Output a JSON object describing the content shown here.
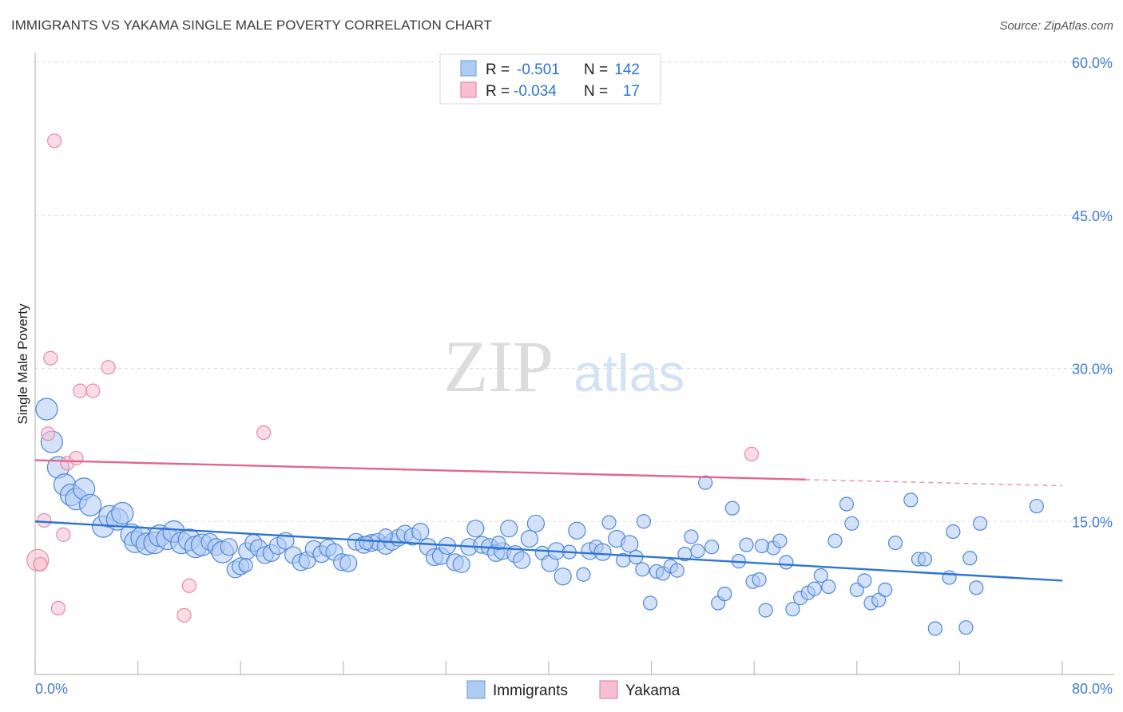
{
  "header": {
    "title": "IMMIGRANTS VS YAKAMA SINGLE MALE POVERTY CORRELATION CHART",
    "source": "Source: ZipAtlas.com"
  },
  "legend_top": [
    {
      "r_label": "R =",
      "r_value": "-0.501",
      "n_label": "N =",
      "n_value": "142",
      "color": "#aecbf2",
      "stroke": "#7aa6e0"
    },
    {
      "r_label": "R =",
      "r_value": "-0.034",
      "n_label": "N =",
      "n_value": "17",
      "color": "#f7bfd0",
      "stroke": "#e58aa8"
    }
  ],
  "legend_bottom": [
    {
      "label": "Immigrants",
      "color": "#aecbf2",
      "stroke": "#7aa6e0"
    },
    {
      "label": "Yakama",
      "color": "#f7bfd0",
      "stroke": "#e58aa8"
    }
  ],
  "watermark": {
    "zip": "ZIP",
    "atlas": "atlas"
  },
  "chart_data": {
    "type": "scatter",
    "title": "IMMIGRANTS VS YAKAMA SINGLE MALE POVERTY CORRELATION CHART",
    "xlabel": "",
    "ylabel": "Single Male Poverty",
    "xlim": [
      0,
      80
    ],
    "ylim": [
      0,
      60
    ],
    "x_tick_labels": [
      "0.0%",
      "80.0%"
    ],
    "y_ticks": [
      15,
      30,
      45,
      60
    ],
    "y_tick_labels": [
      "15.0%",
      "30.0%",
      "45.0%",
      "60.0%"
    ],
    "grid": "horizontal dashed",
    "legend_position": "top-center",
    "series": [
      {
        "name": "Immigrants",
        "color": "#aecbf2",
        "stroke": "#4f86d6",
        "trend": {
          "x": [
            0,
            80
          ],
          "y": [
            15.0,
            9.2
          ],
          "color": "#2f74d0"
        },
        "points": [
          [
            0.9,
            26.0,
            3
          ],
          [
            1.3,
            22.8,
            3
          ],
          [
            1.8,
            20.3,
            3
          ],
          [
            2.3,
            18.6,
            3
          ],
          [
            2.8,
            17.6,
            3
          ],
          [
            3.2,
            17.2,
            3
          ],
          [
            3.8,
            18.2,
            3
          ],
          [
            4.3,
            16.6,
            3
          ],
          [
            5.3,
            14.5,
            3
          ],
          [
            5.8,
            15.5,
            3
          ],
          [
            6.4,
            15.2,
            3
          ],
          [
            6.8,
            15.8,
            3
          ],
          [
            7.5,
            13.7,
            3
          ],
          [
            7.8,
            13.0,
            3
          ],
          [
            8.3,
            13.4,
            3
          ],
          [
            8.7,
            12.8,
            3
          ],
          [
            9.3,
            12.9,
            3
          ],
          [
            9.7,
            13.6,
            3
          ],
          [
            10.3,
            13.3,
            3
          ],
          [
            10.8,
            14.0,
            3
          ],
          [
            11.4,
            12.9,
            3
          ],
          [
            12.0,
            13.2,
            3
          ],
          [
            12.5,
            12.5,
            3
          ],
          [
            13.0,
            12.7,
            3
          ],
          [
            13.6,
            13.0,
            2
          ],
          [
            14.1,
            12.5,
            2
          ],
          [
            14.6,
            12.0,
            3
          ],
          [
            15.1,
            12.5,
            2
          ],
          [
            15.6,
            10.3,
            2
          ],
          [
            16.0,
            10.6,
            2
          ],
          [
            16.5,
            12.1,
            2
          ],
          [
            17.0,
            12.9,
            2
          ],
          [
            17.4,
            12.4,
            2
          ],
          [
            17.9,
            11.7,
            2
          ],
          [
            18.4,
            11.9,
            2
          ],
          [
            18.9,
            12.6,
            2
          ],
          [
            19.5,
            13.1,
            2
          ],
          [
            20.1,
            11.7,
            2
          ],
          [
            20.7,
            11.0,
            2
          ],
          [
            21.2,
            11.2,
            2
          ],
          [
            21.7,
            12.3,
            2
          ],
          [
            22.3,
            11.8,
            2
          ],
          [
            22.8,
            12.4,
            2
          ],
          [
            23.3,
            12.0,
            2
          ],
          [
            23.9,
            11.0,
            2
          ],
          [
            24.4,
            10.9,
            2
          ],
          [
            25.0,
            13.0,
            2
          ],
          [
            25.6,
            12.7,
            2
          ],
          [
            26.2,
            12.9,
            2
          ],
          [
            26.7,
            13.0,
            2
          ],
          [
            27.3,
            12.6,
            2
          ],
          [
            27.8,
            13.0,
            2
          ],
          [
            28.3,
            13.4,
            2
          ],
          [
            28.8,
            13.8,
            2
          ],
          [
            29.4,
            13.5,
            2
          ],
          [
            30.0,
            14.0,
            2
          ],
          [
            30.6,
            12.5,
            2
          ],
          [
            31.1,
            11.5,
            2
          ],
          [
            31.6,
            11.6,
            2
          ],
          [
            32.1,
            12.6,
            2
          ],
          [
            32.7,
            11.0,
            2
          ],
          [
            33.2,
            10.8,
            2
          ],
          [
            33.8,
            12.5,
            2
          ],
          [
            34.3,
            14.3,
            2
          ],
          [
            34.8,
            12.7,
            2
          ],
          [
            35.4,
            12.5,
            2
          ],
          [
            35.9,
            11.9,
            2
          ],
          [
            36.4,
            12.1,
            2
          ],
          [
            36.9,
            14.3,
            2
          ],
          [
            37.4,
            11.8,
            2
          ],
          [
            37.9,
            11.2,
            2
          ],
          [
            38.5,
            13.3,
            2
          ],
          [
            39.0,
            14.8,
            2
          ],
          [
            39.5,
            11.9,
            1
          ],
          [
            40.1,
            10.9,
            2
          ],
          [
            40.6,
            12.1,
            2
          ],
          [
            41.1,
            9.6,
            2
          ],
          [
            41.6,
            12.0,
            1
          ],
          [
            42.2,
            14.1,
            2
          ],
          [
            42.7,
            9.8,
            1
          ],
          [
            43.2,
            12.1,
            2
          ],
          [
            43.7,
            12.5,
            1
          ],
          [
            44.2,
            12.0,
            2
          ],
          [
            44.7,
            14.9,
            1
          ],
          [
            45.3,
            13.3,
            2
          ],
          [
            45.8,
            11.2,
            1
          ],
          [
            46.3,
            12.8,
            2
          ],
          [
            46.8,
            11.5,
            1
          ],
          [
            47.3,
            10.3,
            1
          ],
          [
            47.9,
            7.0,
            1
          ],
          [
            48.4,
            10.1,
            1
          ],
          [
            48.9,
            9.9,
            1
          ],
          [
            49.5,
            10.6,
            1
          ],
          [
            50.0,
            10.2,
            1
          ],
          [
            50.6,
            11.8,
            1
          ],
          [
            51.1,
            13.5,
            1
          ],
          [
            51.6,
            12.1,
            1
          ],
          [
            52.2,
            18.8,
            1
          ],
          [
            52.7,
            12.5,
            1
          ],
          [
            53.2,
            7.0,
            1
          ],
          [
            53.7,
            7.9,
            1
          ],
          [
            54.3,
            16.3,
            1
          ],
          [
            54.8,
            11.1,
            1
          ],
          [
            55.4,
            12.7,
            1
          ],
          [
            55.9,
            9.1,
            1
          ],
          [
            56.4,
            9.3,
            1
          ],
          [
            56.9,
            6.3,
            1
          ],
          [
            57.5,
            12.4,
            1
          ],
          [
            58.0,
            13.1,
            1
          ],
          [
            58.5,
            11.0,
            1
          ],
          [
            59.0,
            6.4,
            1
          ],
          [
            59.6,
            7.5,
            1
          ],
          [
            60.2,
            8.0,
            1
          ],
          [
            60.7,
            8.4,
            1
          ],
          [
            61.2,
            9.7,
            1
          ],
          [
            61.8,
            8.6,
            1
          ],
          [
            62.3,
            13.1,
            1
          ],
          [
            63.2,
            16.7,
            1
          ],
          [
            63.6,
            14.8,
            1
          ],
          [
            64.0,
            8.3,
            1
          ],
          [
            64.6,
            9.2,
            1
          ],
          [
            65.1,
            7.0,
            1
          ],
          [
            65.7,
            7.3,
            1
          ],
          [
            66.2,
            8.3,
            1
          ],
          [
            67.0,
            12.9,
            1
          ],
          [
            68.2,
            17.1,
            1
          ],
          [
            68.8,
            11.3,
            1
          ],
          [
            69.3,
            11.3,
            1
          ],
          [
            70.1,
            4.5,
            1
          ],
          [
            71.2,
            9.5,
            1
          ],
          [
            71.5,
            14.0,
            1
          ],
          [
            72.5,
            4.6,
            1
          ],
          [
            72.8,
            11.4,
            1
          ],
          [
            73.3,
            8.5,
            1
          ],
          [
            73.6,
            14.8,
            1
          ],
          [
            78.0,
            16.5,
            1
          ],
          [
            16.4,
            10.7,
            1
          ],
          [
            27.3,
            13.6,
            1
          ],
          [
            25.8,
            12.9,
            1
          ],
          [
            36.1,
            12.9,
            1
          ],
          [
            47.4,
            15.0,
            1
          ],
          [
            56.6,
            12.6,
            1
          ]
        ]
      },
      {
        "name": "Yakama",
        "color": "#f7bfd0",
        "stroke": "#e58aa8",
        "trend": {
          "x": [
            0,
            60
          ],
          "y": [
            21.0,
            19.1
          ],
          "dashed_to": [
            80,
            18.5
          ],
          "color": "#e06690"
        },
        "points": [
          [
            0.2,
            11.2,
            3
          ],
          [
            0.4,
            10.8,
            1
          ],
          [
            0.7,
            15.1,
            1
          ],
          [
            1.0,
            23.6,
            1
          ],
          [
            1.2,
            31.0,
            1
          ],
          [
            1.5,
            52.3,
            1
          ],
          [
            1.8,
            6.5,
            1
          ],
          [
            2.2,
            13.7,
            1
          ],
          [
            2.5,
            20.7,
            1
          ],
          [
            3.2,
            21.2,
            1
          ],
          [
            3.5,
            27.8,
            1
          ],
          [
            4.5,
            27.8,
            1
          ],
          [
            5.7,
            30.1,
            1
          ],
          [
            11.6,
            5.8,
            1
          ],
          [
            12.0,
            8.7,
            1
          ],
          [
            17.8,
            23.7,
            1
          ],
          [
            55.8,
            21.6,
            1
          ]
        ]
      }
    ]
  }
}
